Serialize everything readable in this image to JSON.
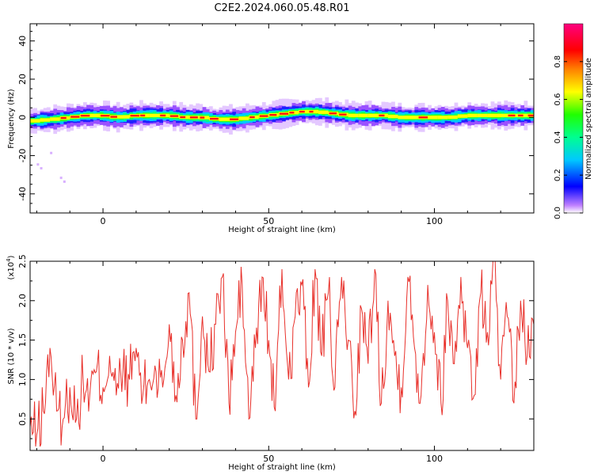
{
  "title": "C2E2.2024.060.05.48.R01",
  "colors": {
    "snr_line": "#e8302a",
    "spectrum": [
      "#7a00ff",
      "#0000ff",
      "#00e0ff",
      "#00ff40",
      "#ffff00",
      "#ff0000",
      "#ff00aa"
    ]
  },
  "chart_data": [
    {
      "type": "heatmap",
      "xlabel": "Height of straight line (km)",
      "ylabel": "Frequency (Hz)",
      "xlim": [
        -22,
        130
      ],
      "ylim": [
        -50,
        49
      ],
      "xticks": [
        0,
        50,
        100
      ],
      "xtick_labels": [
        "0",
        "50",
        "100"
      ],
      "yticks": [
        -40,
        -20,
        0,
        20,
        40
      ],
      "ytick_labels": [
        "-40",
        "-20",
        "0",
        "20",
        "40"
      ],
      "colorbar": {
        "label": "Normalized spectral amplitude",
        "range": [
          0,
          1
        ],
        "ticks": [
          0.0,
          0.2,
          0.4,
          0.6,
          0.8
        ],
        "tick_labels": [
          "0.0",
          "0.2",
          "0.4",
          "0.6",
          "0.8"
        ]
      },
      "ridge": {
        "x": [
          -22,
          -15,
          -10,
          -5,
          0,
          5,
          10,
          15,
          20,
          25,
          30,
          35,
          40,
          45,
          50,
          55,
          60,
          65,
          70,
          75,
          80,
          85,
          90,
          95,
          100,
          105,
          110,
          115,
          120,
          125,
          130
        ],
        "frequency": [
          -2,
          -1,
          0,
          1,
          1,
          0,
          1,
          1,
          1,
          0,
          0,
          -1,
          -1,
          0,
          1,
          2,
          3,
          3,
          2,
          1,
          1,
          1,
          0,
          0,
          0,
          0,
          1,
          1,
          1,
          1,
          1
        ]
      }
    },
    {
      "type": "line",
      "xlabel": "Height of straight line (km)",
      "ylabel": "SNR (10 * v/v)",
      "y_multiplier_label": "(x10",
      "y_multiplier_exp": "4",
      "y_multiplier_close": ")",
      "xlim": [
        -22,
        130
      ],
      "ylim": [
        0.1,
        2.5
      ],
      "xticks": [
        0,
        50,
        100
      ],
      "xtick_labels": [
        "0",
        "50",
        "100"
      ],
      "yticks": [
        0.5,
        1.0,
        1.5,
        2.0,
        2.5
      ],
      "ytick_labels": [
        "0.5",
        "1.0",
        "1.5",
        "2.0",
        "2.5"
      ],
      "series": [
        {
          "x": [
            -22,
            -20,
            -18,
            -16,
            -14,
            -12,
            -10,
            -8,
            -6,
            -4,
            -2,
            0,
            2,
            4,
            6,
            8,
            10,
            12,
            14,
            16,
            18,
            20,
            22,
            24,
            26,
            28,
            30,
            32,
            34,
            36,
            38,
            40,
            42,
            44,
            46,
            48,
            50,
            52,
            54,
            56,
            58,
            60,
            62,
            64,
            66,
            68,
            70,
            72,
            74,
            76,
            78,
            80,
            82,
            84,
            86,
            88,
            90,
            92,
            94,
            96,
            98,
            100,
            102,
            104,
            106,
            108,
            110,
            112,
            114,
            116,
            118,
            120,
            122,
            124,
            126,
            128,
            130
          ],
          "values": [
            0.4,
            0.3,
            0.6,
            1.4,
            0.6,
            0.5,
            0.9,
            0.5,
            1.0,
            0.8,
            1.1,
            0.9,
            1.3,
            0.8,
            1.1,
            1.0,
            1.4,
            0.8,
            1.0,
            1.1,
            0.9,
            1.7,
            0.8,
            1.5,
            2.1,
            0.5,
            1.8,
            1.1,
            1.7,
            2.3,
            0.7,
            1.6,
            2.2,
            0.5,
            1.4,
            2.3,
            1.5,
            0.6,
            2.4,
            1.0,
            1.8,
            2.2,
            0.9,
            2.4,
            1.3,
            2.1,
            0.9,
            2.3,
            1.5,
            0.6,
            1.9,
            1.2,
            2.4,
            0.7,
            2.0,
            1.3,
            0.9,
            2.3,
            1.4,
            0.8,
            2.2,
            1.6,
            0.7,
            2.0,
            1.2,
            2.3,
            1.4,
            0.8,
            2.1,
            1.6,
            2.5,
            1.0,
            1.8,
            0.7,
            2.0,
            1.3,
            1.7
          ]
        }
      ]
    }
  ]
}
